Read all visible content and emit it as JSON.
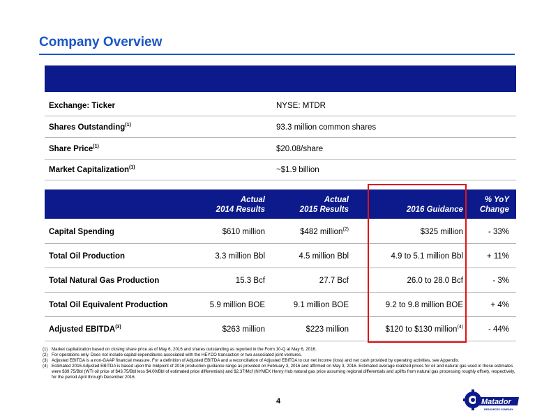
{
  "title": "Company Overview",
  "overview": [
    {
      "label": "Exchange: Ticker",
      "sup": "",
      "value": "NYSE: MTDR"
    },
    {
      "label": "Shares Outstanding",
      "sup": "(1)",
      "value": "93.3 million common shares"
    },
    {
      "label": "Share Price",
      "sup": "(1)",
      "value": "$20.08/share"
    },
    {
      "label": "Market Capitalization",
      "sup": "(1)",
      "value": "~$1.9 billion"
    }
  ],
  "ops_header": {
    "col1": [
      "Actual",
      "2014 Results"
    ],
    "col2": [
      "Actual",
      "2015 Results"
    ],
    "col3": "2016 Guidance",
    "col4": [
      "% YoY",
      "Change"
    ]
  },
  "ops_rows": [
    {
      "label": "Capital Spending",
      "label_sup": "",
      "v2014": "$610 million",
      "v2015": "$482 million",
      "v2015_sup": "(2)",
      "v2016": "$325 million",
      "v2016_sup": "",
      "yoy": "- 33%"
    },
    {
      "label": "Total Oil Production",
      "label_sup": "",
      "v2014": "3.3 million Bbl",
      "v2015": "4.5 million Bbl",
      "v2015_sup": "",
      "v2016": "4.9 to 5.1 million Bbl",
      "v2016_sup": "",
      "yoy": "+ 11%"
    },
    {
      "label": "Total Natural Gas Production",
      "label_sup": "",
      "v2014": "15.3 Bcf",
      "v2015": "27.7 Bcf",
      "v2015_sup": "",
      "v2016": "26.0 to 28.0 Bcf",
      "v2016_sup": "",
      "yoy": "- 3%"
    },
    {
      "label": "Total Oil Equivalent Production",
      "label_sup": "",
      "v2014": "5.9 million BOE",
      "v2015": "9.1 million BOE",
      "v2015_sup": "",
      "v2016": "9.2 to 9.8 million BOE",
      "v2016_sup": "",
      "yoy": "+ 4%"
    },
    {
      "label": "Adjusted EBITDA",
      "label_sup": "(3)",
      "v2014": "$263 million",
      "v2015": "$223 million",
      "v2015_sup": "",
      "v2016": "$120 to $130 million",
      "v2016_sup": "(4)",
      "yoy": "- 44%"
    }
  ],
  "footnotes": [
    {
      "n": "(1)",
      "text": "Market capitalization based on closing share price as of May 6, 2016 and shares outstanding as reported in the Form 10-Q at May 6, 2016."
    },
    {
      "n": "(2)",
      "text": "For operations only. Does not include capital expenditures associated with the HEYCO transaction or two associated joint ventures."
    },
    {
      "n": "(3)",
      "text": "Adjusted EBITDA is a non-GAAP financial measure. For a definition of Adjusted EBITDA and a reconciliation of Adjusted EBITDA to our net income (loss) and net cash provided by operating activities, see Appendix."
    },
    {
      "n": "(4)",
      "text": "Estimated 2016 Adjusted EBITDA is based upon the midpoint of 2016 production guidance range as provided on February 3, 2016 and affirmed on May 3, 2016. Estimated average realized prices for oil and natural gas used in these estimates were $39.75/Bbl (WTI oil price of $43.75/Bbl less $4.00/Bbl of estimated price differentials) and $2.37/Mcf (NYMEX Henry Hub natural gas price assuming regional differentials and uplifts from natural gas processing roughly offset), respectively, for the period April through December 2016."
    }
  ],
  "page_number": "4",
  "logo": {
    "wordmark": "Matador",
    "tagline": "RESOURCES COMPANY"
  },
  "colors": {
    "title": "#1a56c4",
    "header_band": "#0c1a8c",
    "highlight": "#e11414"
  }
}
